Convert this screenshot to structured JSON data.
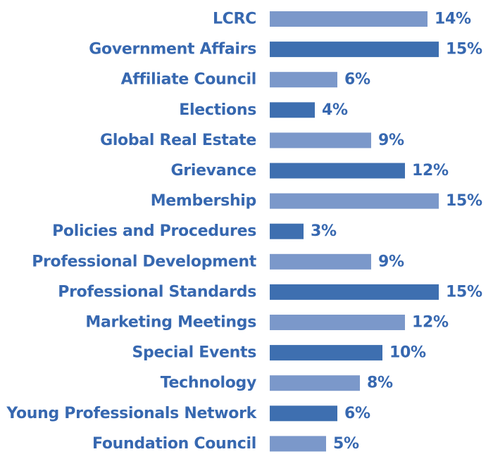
{
  "chart_data": {
    "type": "bar",
    "orientation": "horizontal",
    "categories": [
      "LCRC",
      "Government Affairs",
      "Affiliate Council",
      "Elections",
      "Global Real Estate",
      "Grievance",
      "Membership",
      "Policies and Procedures",
      "Professional Development",
      "Professional Standards",
      "Marketing Meetings",
      "Special Events",
      "Technology",
      "Young Professionals Network",
      "Foundation Council"
    ],
    "values": [
      14,
      15,
      6,
      4,
      9,
      12,
      15,
      3,
      9,
      15,
      12,
      10,
      8,
      6,
      5
    ],
    "value_labels": [
      "14%",
      "15%",
      "6%",
      "4%",
      "9%",
      "12%",
      "15%",
      "3%",
      "9%",
      "15%",
      "12%",
      "10%",
      "8%",
      "6%",
      "5%"
    ],
    "unit": "%",
    "xlim": [
      0,
      15
    ],
    "grid": false,
    "legend": "none"
  },
  "colors": {
    "bar_light": "#7b98ca",
    "bar_dark": "#3e6fb0",
    "label_text": "#3768b0"
  }
}
